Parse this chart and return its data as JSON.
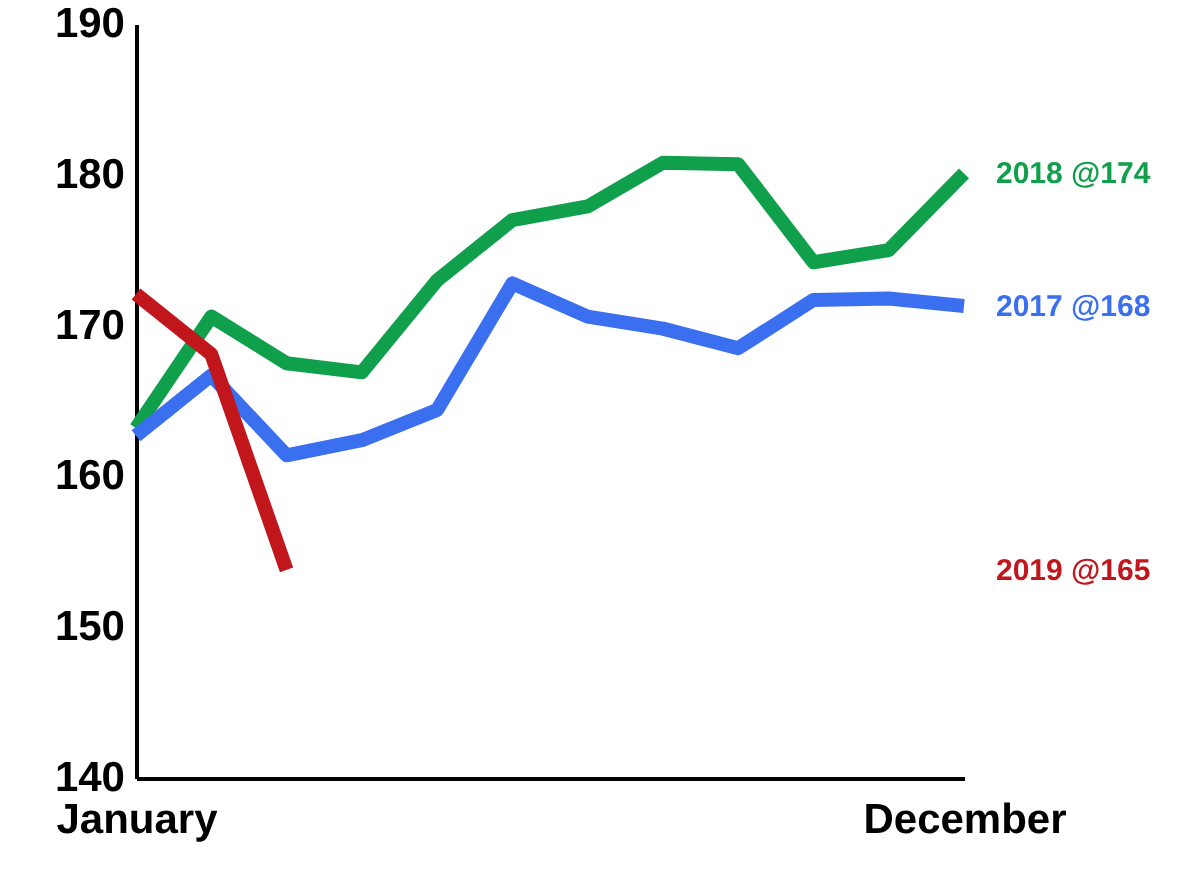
{
  "chart_data": {
    "type": "line",
    "categories": [
      "January",
      null,
      null,
      null,
      null,
      null,
      null,
      null,
      null,
      null,
      null,
      "December"
    ],
    "series": [
      {
        "name": "2018 @174",
        "color": "#10a04c",
        "values": [
          163.2,
          170.6,
          167.5,
          166.9,
          173.0,
          177.0,
          177.9,
          180.8,
          180.7,
          174.2,
          175.0,
          180.1
        ]
      },
      {
        "name": "2017 @168",
        "color": "#3a6ff0",
        "values": [
          162.7,
          166.7,
          161.4,
          162.4,
          164.4,
          172.8,
          170.6,
          169.8,
          168.5,
          171.7,
          171.8,
          171.3
        ]
      },
      {
        "name": "2019 @165",
        "color": "#c0161c",
        "values": [
          172.1,
          168.1,
          153.8,
          null,
          null,
          null,
          null,
          null,
          null,
          null,
          null,
          null
        ]
      }
    ],
    "ylim": [
      140,
      190
    ],
    "yticks": [
      140,
      150,
      160,
      170,
      180,
      190
    ],
    "grid": false,
    "marker": "none",
    "line_style": "solid"
  }
}
